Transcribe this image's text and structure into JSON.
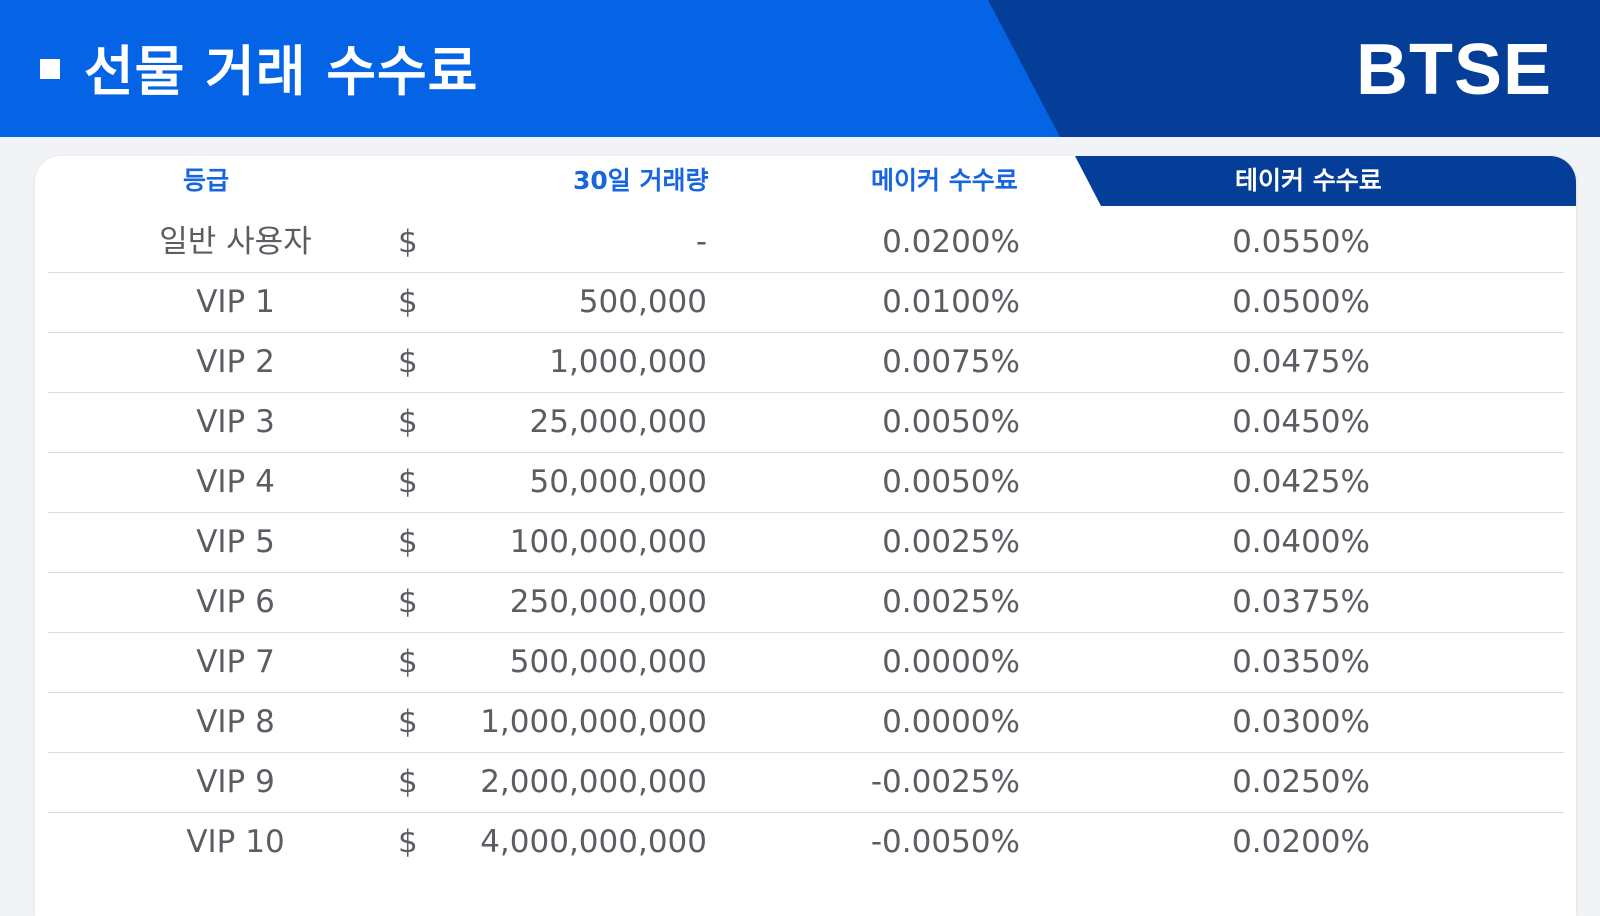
{
  "banner": {
    "title": "선물 거래 수수료",
    "logo": "BTSE",
    "colors": {
      "primary": "#0564e6",
      "dark": "#043e98"
    }
  },
  "table": {
    "headers": {
      "tier": "등급",
      "volume": "30일 거래량",
      "maker": "메이커 수수료",
      "taker": "테이커 수수료"
    },
    "rows": [
      {
        "tier": "일반 사용자",
        "currency": "$",
        "volume": "-",
        "maker": "0.0200%",
        "taker": "0.0550%"
      },
      {
        "tier": "VIP 1",
        "currency": "$",
        "volume": "500,000",
        "maker": "0.0100%",
        "taker": "0.0500%"
      },
      {
        "tier": "VIP 2",
        "currency": "$",
        "volume": "1,000,000",
        "maker": "0.0075%",
        "taker": "0.0475%"
      },
      {
        "tier": "VIP 3",
        "currency": "$",
        "volume": "25,000,000",
        "maker": "0.0050%",
        "taker": "0.0450%"
      },
      {
        "tier": "VIP 4",
        "currency": "$",
        "volume": "50,000,000",
        "maker": "0.0050%",
        "taker": "0.0425%"
      },
      {
        "tier": "VIP 5",
        "currency": "$",
        "volume": "100,000,000",
        "maker": "0.0025%",
        "taker": "0.0400%"
      },
      {
        "tier": "VIP 6",
        "currency": "$",
        "volume": "250,000,000",
        "maker": "0.0025%",
        "taker": "0.0375%"
      },
      {
        "tier": "VIP 7",
        "currency": "$",
        "volume": "500,000,000",
        "maker": "0.0000%",
        "taker": "0.0350%"
      },
      {
        "tier": "VIP 8",
        "currency": "$",
        "volume": "1,000,000,000",
        "maker": "0.0000%",
        "taker": "0.0300%"
      },
      {
        "tier": "VIP 9",
        "currency": "$",
        "volume": "2,000,000,000",
        "maker": "-0.0025%",
        "taker": "0.0250%"
      },
      {
        "tier": "VIP 10",
        "currency": "$",
        "volume": "4,000,000,000",
        "maker": "-0.0050%",
        "taker": "0.0200%"
      }
    ]
  }
}
